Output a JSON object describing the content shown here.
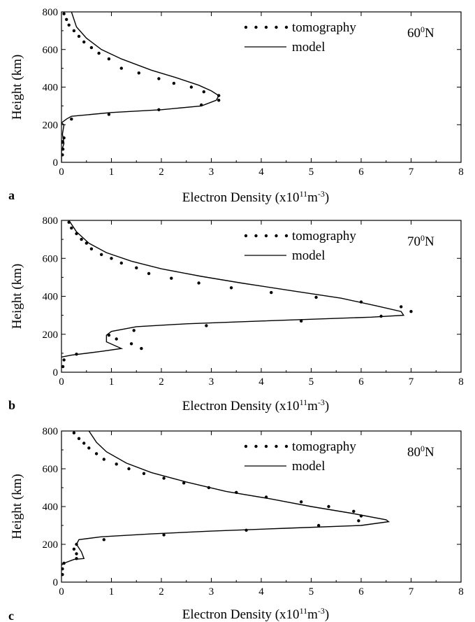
{
  "chart_data": [
    {
      "type": "line",
      "panel_label": "a",
      "latitude_label": "60",
      "latitude_sup": "0",
      "latitude_suffix": "N",
      "xlabel": "Electron Density (x10",
      "xlabel_sup1": "11",
      "xlabel_mid": "m",
      "xlabel_sup2": "-3",
      "xlabel_end": ")",
      "ylabel": "Height (km)",
      "xlim": [
        0,
        8
      ],
      "ylim": [
        0,
        800
      ],
      "x_ticks": [
        "0",
        "1",
        "2",
        "3",
        "4",
        "5",
        "6",
        "7",
        "8"
      ],
      "y_ticks": [
        "0",
        "200",
        "400",
        "600",
        "800"
      ],
      "legend_position": "top-right",
      "series": [
        {
          "name": "tomography",
          "style": "dotted",
          "points": [
            [
              0.05,
              790
            ],
            [
              0.1,
              760
            ],
            [
              0.15,
              730
            ],
            [
              0.25,
              700
            ],
            [
              0.35,
              670
            ],
            [
              0.45,
              640
            ],
            [
              0.6,
              610
            ],
            [
              0.75,
              580
            ],
            [
              0.95,
              550
            ],
            [
              1.2,
              500
            ],
            [
              1.55,
              475
            ],
            [
              1.95,
              445
            ],
            [
              2.25,
              420
            ],
            [
              2.6,
              400
            ],
            [
              2.85,
              375
            ],
            [
              3.15,
              355
            ],
            [
              3.15,
              330
            ],
            [
              2.8,
              305
            ],
            [
              1.95,
              280
            ],
            [
              0.95,
              255
            ],
            [
              0.2,
              230
            ],
            [
              0.05,
              130
            ],
            [
              0.02,
              110
            ],
            [
              0.03,
              70
            ],
            [
              0.02,
              40
            ]
          ]
        },
        {
          "name": "model",
          "style": "solid",
          "points": [
            [
              0.2,
              800
            ],
            [
              0.3,
              720
            ],
            [
              0.5,
              660
            ],
            [
              0.8,
              600
            ],
            [
              1.2,
              550
            ],
            [
              1.8,
              490
            ],
            [
              2.3,
              450
            ],
            [
              2.75,
              410
            ],
            [
              3.0,
              380
            ],
            [
              3.15,
              355
            ],
            [
              3.1,
              330
            ],
            [
              2.8,
              300
            ],
            [
              2.0,
              280
            ],
            [
              1.0,
              265
            ],
            [
              0.2,
              245
            ],
            [
              0.1,
              230
            ],
            [
              0.0,
              210
            ],
            [
              0.05,
              200
            ],
            [
              0.02,
              150
            ],
            [
              0.05,
              100
            ],
            [
              0.0,
              60
            ],
            [
              0.0,
              0
            ]
          ]
        }
      ]
    },
    {
      "type": "line",
      "panel_label": "b",
      "latitude_label": "70",
      "latitude_sup": "0",
      "latitude_suffix": "N",
      "xlabel": "Electron Density (x10",
      "xlabel_sup1": "11",
      "xlabel_mid": "m",
      "xlabel_sup2": "-3",
      "xlabel_end": ")",
      "ylabel": "Height (km)",
      "xlim": [
        0,
        8
      ],
      "ylim": [
        0,
        800
      ],
      "x_ticks": [
        "0",
        "1",
        "2",
        "3",
        "4",
        "5",
        "6",
        "7",
        "8"
      ],
      "y_ticks": [
        "0",
        "200",
        "400",
        "600",
        "800"
      ],
      "legend_position": "top-right",
      "series": [
        {
          "name": "tomography",
          "style": "dotted",
          "points": [
            [
              0.15,
              790
            ],
            [
              0.2,
              760
            ],
            [
              0.3,
              730
            ],
            [
              0.4,
              700
            ],
            [
              0.5,
              680
            ],
            [
              0.6,
              650
            ],
            [
              0.8,
              620
            ],
            [
              1.0,
              600
            ],
            [
              1.2,
              575
            ],
            [
              1.5,
              550
            ],
            [
              1.75,
              520
            ],
            [
              2.2,
              495
            ],
            [
              2.75,
              470
            ],
            [
              3.4,
              445
            ],
            [
              4.2,
              420
            ],
            [
              5.1,
              395
            ],
            [
              6.0,
              370
            ],
            [
              6.8,
              345
            ],
            [
              7.0,
              320
            ],
            [
              6.4,
              295
            ],
            [
              4.8,
              270
            ],
            [
              2.9,
              245
            ],
            [
              1.45,
              220
            ],
            [
              0.95,
              195
            ],
            [
              1.1,
              175
            ],
            [
              1.4,
              150
            ],
            [
              1.6,
              125
            ],
            [
              0.3,
              95
            ],
            [
              0.05,
              65
            ],
            [
              0.03,
              30
            ]
          ]
        },
        {
          "name": "model",
          "style": "solid",
          "points": [
            [
              0.15,
              800
            ],
            [
              0.3,
              740
            ],
            [
              0.55,
              680
            ],
            [
              0.9,
              630
            ],
            [
              1.4,
              585
            ],
            [
              2.0,
              545
            ],
            [
              2.8,
              505
            ],
            [
              3.6,
              470
            ],
            [
              4.6,
              430
            ],
            [
              5.6,
              390
            ],
            [
              6.3,
              350
            ],
            [
              6.8,
              320
            ],
            [
              6.85,
              300
            ],
            [
              6.2,
              290
            ],
            [
              4.0,
              270
            ],
            [
              2.5,
              255
            ],
            [
              1.5,
              240
            ],
            [
              1.0,
              215
            ],
            [
              0.9,
              195
            ],
            [
              0.9,
              160
            ],
            [
              1.2,
              125
            ],
            [
              0.8,
              110
            ],
            [
              0.2,
              90
            ],
            [
              0.0,
              80
            ]
          ]
        }
      ]
    },
    {
      "type": "line",
      "panel_label": "c",
      "latitude_label": "80",
      "latitude_sup": "0",
      "latitude_suffix": "N",
      "xlabel": "Electron Density (x10",
      "xlabel_sup1": "11",
      "xlabel_mid": "m",
      "xlabel_sup2": "-3",
      "xlabel_end": ")",
      "ylabel": "Height (km)",
      "xlim": [
        0,
        8
      ],
      "ylim": [
        0,
        800
      ],
      "x_ticks": [
        "0",
        "1",
        "2",
        "3",
        "4",
        "5",
        "6",
        "7",
        "8"
      ],
      "y_ticks": [
        "0",
        "200",
        "400",
        "600",
        "800"
      ],
      "legend_position": "top-right",
      "series": [
        {
          "name": "tomography",
          "style": "dotted",
          "points": [
            [
              0.25,
              790
            ],
            [
              0.35,
              760
            ],
            [
              0.45,
              735
            ],
            [
              0.55,
              710
            ],
            [
              0.7,
              680
            ],
            [
              0.85,
              650
            ],
            [
              1.1,
              625
            ],
            [
              1.35,
              600
            ],
            [
              1.65,
              575
            ],
            [
              2.05,
              550
            ],
            [
              2.45,
              525
            ],
            [
              2.95,
              500
            ],
            [
              3.5,
              475
            ],
            [
              4.1,
              450
            ],
            [
              4.8,
              425
            ],
            [
              5.35,
              400
            ],
            [
              5.85,
              375
            ],
            [
              6.0,
              350
            ],
            [
              5.95,
              325
            ],
            [
              5.15,
              300
            ],
            [
              3.7,
              275
            ],
            [
              2.05,
              250
            ],
            [
              0.85,
              225
            ],
            [
              0.3,
              200
            ],
            [
              0.25,
              175
            ],
            [
              0.3,
              150
            ],
            [
              0.3,
              125
            ],
            [
              0.05,
              100
            ],
            [
              0.02,
              70
            ],
            [
              0.02,
              40
            ]
          ]
        },
        {
          "name": "model",
          "style": "solid",
          "points": [
            [
              0.55,
              800
            ],
            [
              0.7,
              740
            ],
            [
              0.9,
              690
            ],
            [
              1.3,
              630
            ],
            [
              1.8,
              580
            ],
            [
              2.5,
              530
            ],
            [
              3.3,
              480
            ],
            [
              4.2,
              440
            ],
            [
              5.0,
              400
            ],
            [
              5.8,
              365
            ],
            [
              6.5,
              330
            ],
            [
              6.55,
              320
            ],
            [
              6.0,
              300
            ],
            [
              4.5,
              285
            ],
            [
              3.0,
              270
            ],
            [
              1.8,
              255
            ],
            [
              0.8,
              240
            ],
            [
              0.35,
              225
            ],
            [
              0.3,
              200
            ],
            [
              0.4,
              160
            ],
            [
              0.45,
              125
            ],
            [
              0.25,
              120
            ],
            [
              0.05,
              100
            ],
            [
              0.0,
              90
            ]
          ]
        }
      ]
    }
  ]
}
